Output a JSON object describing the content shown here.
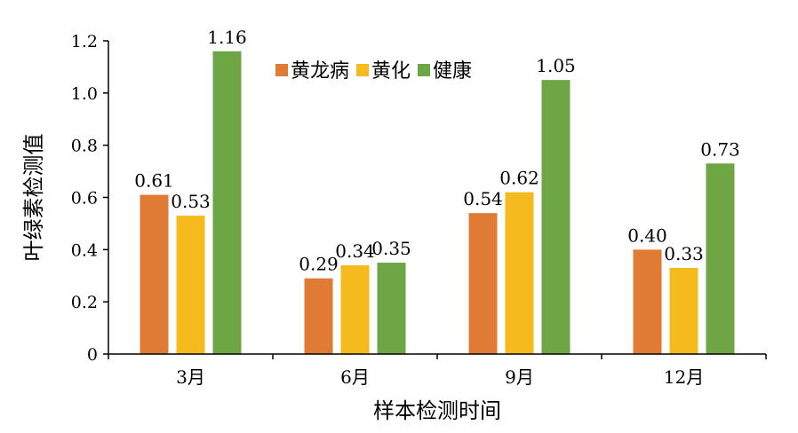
{
  "chart_data": {
    "type": "bar",
    "title": "",
    "xlabel": "样本检测时间",
    "ylabel": "叶绿素检测值",
    "categories": [
      "3月",
      "6月",
      "9月",
      "12月"
    ],
    "series": [
      {
        "name": "黄龙病",
        "color": "#E07B36",
        "values": [
          0.61,
          0.29,
          0.54,
          0.4
        ],
        "labels": [
          "0.61",
          "0.29",
          "0.54",
          "0.40"
        ]
      },
      {
        "name": "黄化",
        "color": "#F4BA1E",
        "values": [
          0.53,
          0.34,
          0.62,
          0.33
        ],
        "labels": [
          "0.53",
          "0.34",
          "0.62",
          "0.33"
        ]
      },
      {
        "name": "健康",
        "color": "#6EA646",
        "values": [
          1.16,
          0.35,
          1.05,
          0.73
        ],
        "labels": [
          "1.16",
          "0.35",
          "1.05",
          "0.73"
        ]
      }
    ],
    "ylim": [
      0,
      1.2
    ],
    "yticks": [
      "0",
      "0.2",
      "0.4",
      "0.6",
      "0.8",
      "1.0",
      "1.2"
    ],
    "grid": false,
    "legend_position": "top"
  }
}
